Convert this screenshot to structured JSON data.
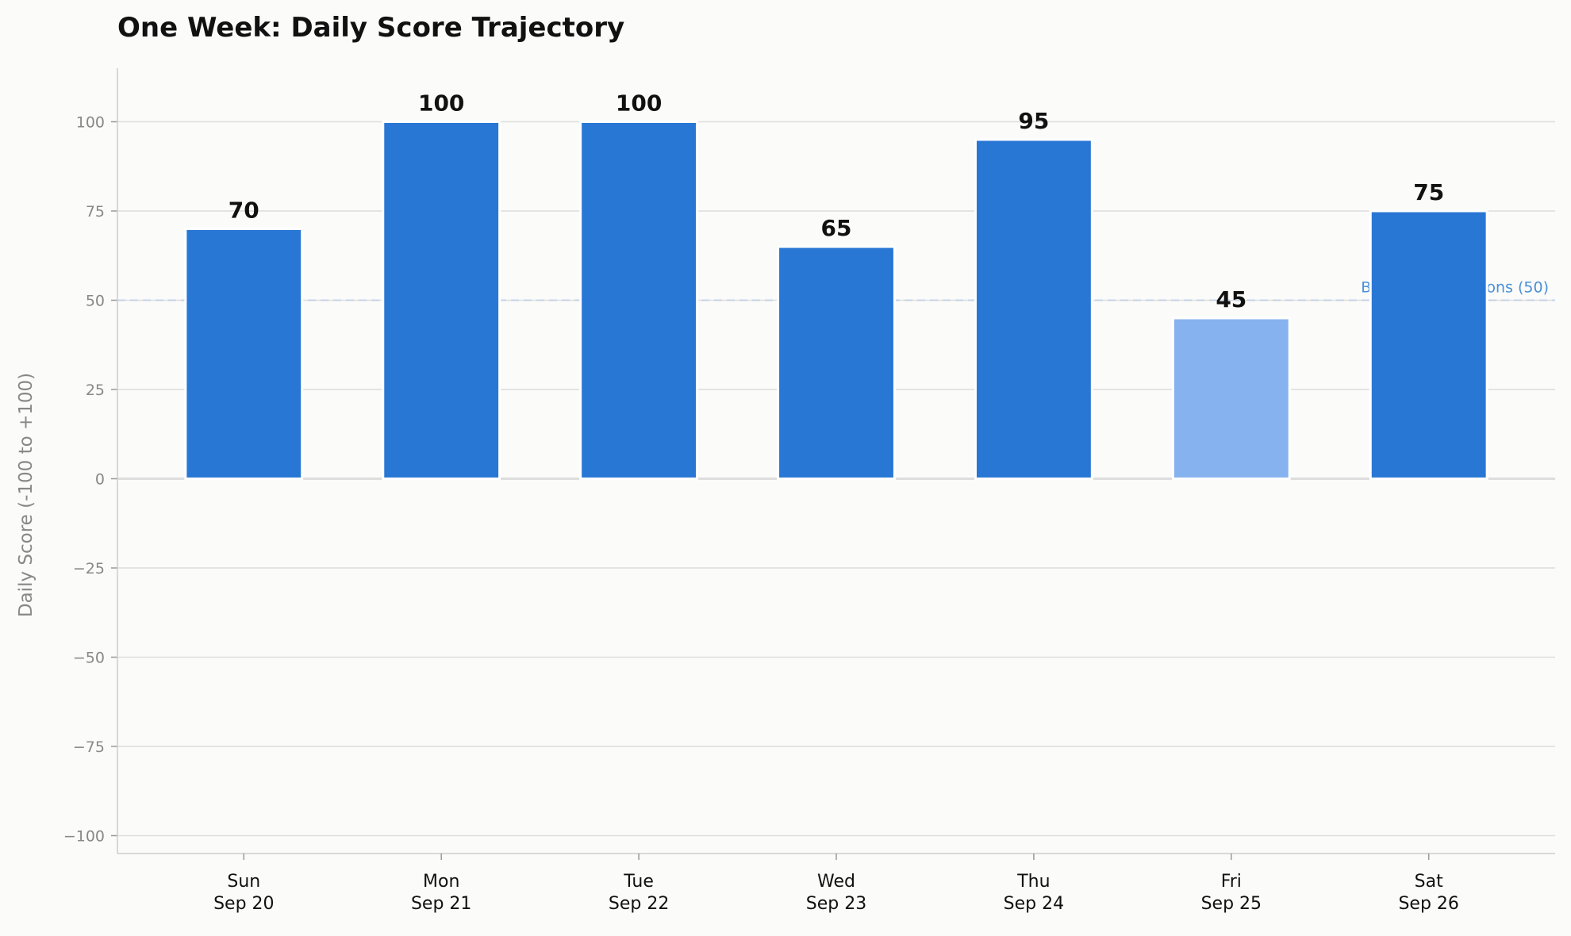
{
  "chart_data": {
    "type": "bar",
    "title": "One Week: Daily Score Trajectory",
    "xlabel": "",
    "ylabel": "Daily Score (-100 to +100)",
    "ylim": [
      -105,
      115
    ],
    "yticks": [
      -100,
      -75,
      -50,
      -25,
      0,
      25,
      50,
      75,
      100
    ],
    "ytick_labels": [
      "−100",
      "−75",
      "−50",
      "−25",
      "0",
      "25",
      "50",
      "75",
      "100"
    ],
    "categories": [
      {
        "day": "Sun",
        "date": "Sep 20"
      },
      {
        "day": "Mon",
        "date": "Sep 21"
      },
      {
        "day": "Tue",
        "date": "Sep 22"
      },
      {
        "day": "Wed",
        "date": "Sep 23"
      },
      {
        "day": "Thu",
        "date": "Sep 24"
      },
      {
        "day": "Fri",
        "date": "Sep 25"
      },
      {
        "day": "Sat",
        "date": "Sep 26"
      }
    ],
    "values": [
      70,
      100,
      100,
      65,
      95,
      45,
      75
    ],
    "data_labels": [
      "70",
      "100",
      "100",
      "65",
      "95",
      "45",
      "75"
    ],
    "reference_line": {
      "value": 50,
      "label": "Bullish Expectations (50)",
      "style": "dashed"
    },
    "grid": "horizontal",
    "colors": {
      "bar": "#2977d5",
      "bar_light": "#86b3ef",
      "reference": "#4a90d9",
      "grid": "#dddddd",
      "background": "#fbfbf9"
    },
    "bar_color_keys": [
      "bar",
      "bar",
      "bar",
      "bar",
      "bar",
      "bar_light",
      "bar"
    ]
  }
}
